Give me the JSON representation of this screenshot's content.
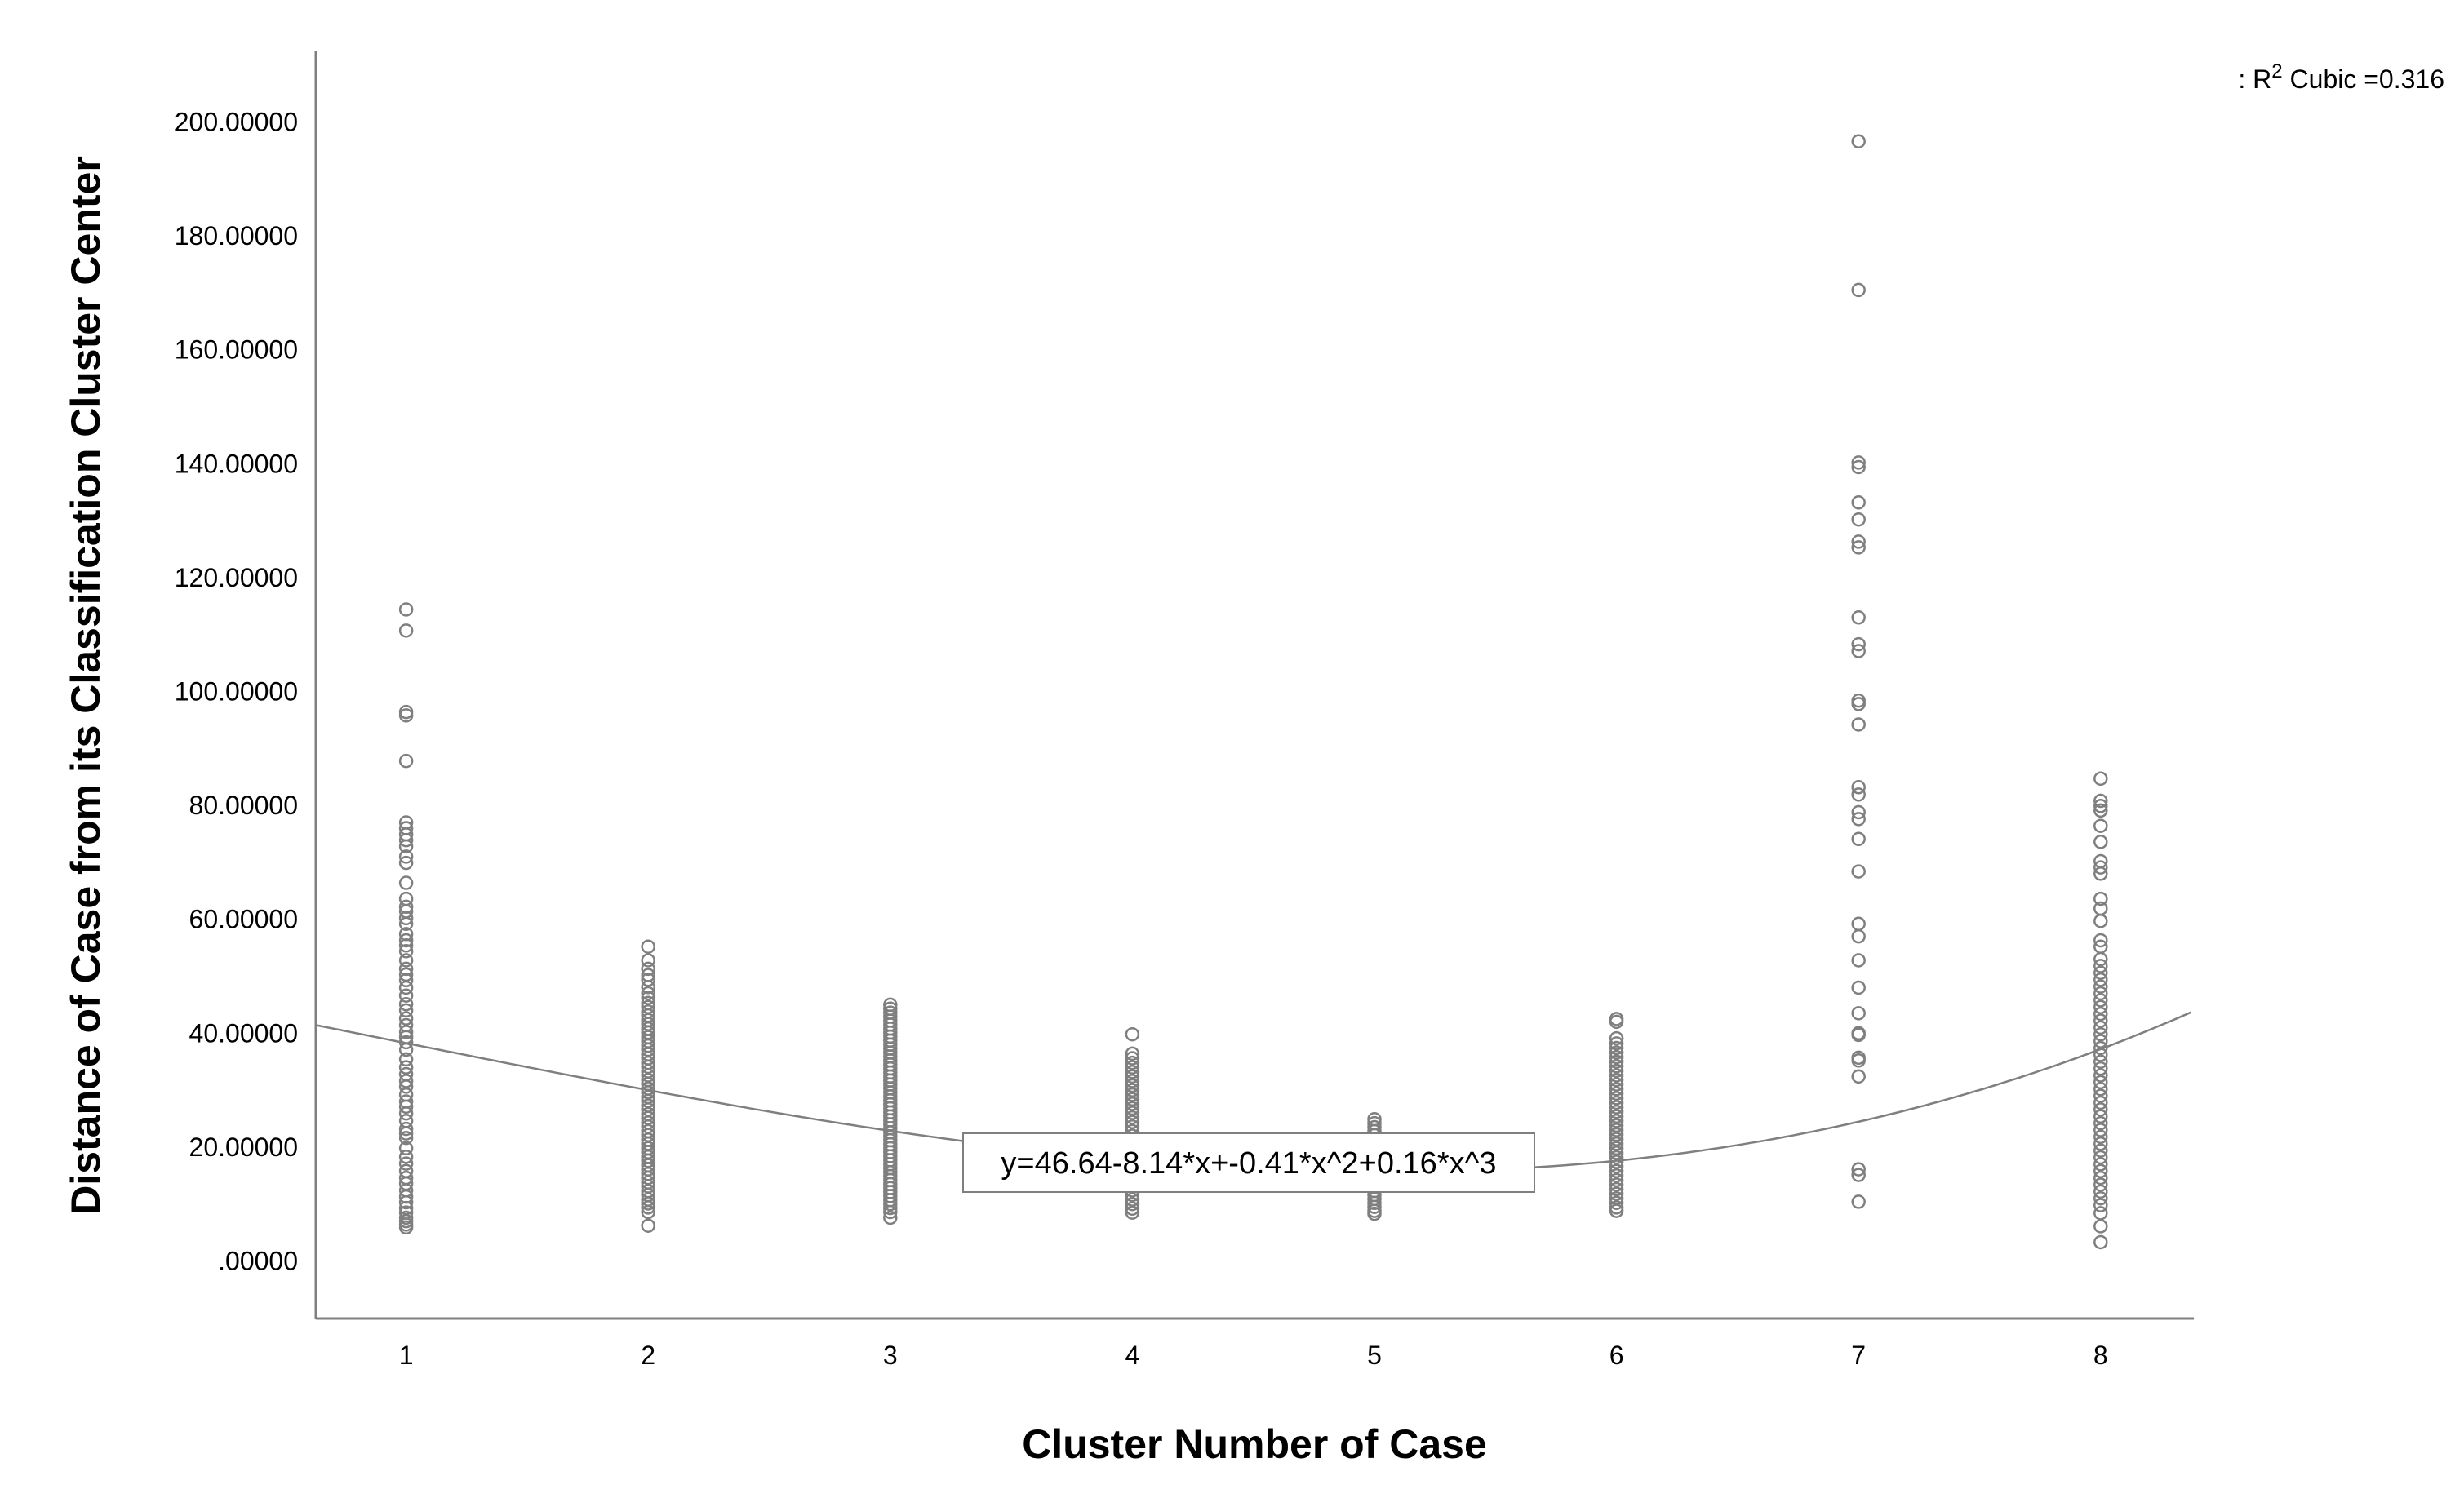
{
  "chart_data": {
    "type": "scatter",
    "title": "",
    "xlabel": "Cluster Number of Case",
    "ylabel": "Distance of Case from its Classification Cluster Center",
    "xlim": [
      0.63,
      8.4
    ],
    "ylim": [
      -10,
      212
    ],
    "x_ticks": [
      "1",
      "2",
      "3",
      "4",
      "5",
      "6",
      "7",
      "8"
    ],
    "y_ticks": [
      ".00000",
      "20.00000",
      "40.00000",
      "60.00000",
      "80.00000",
      "100.00000",
      "120.00000",
      "140.00000",
      "160.00000",
      "180.00000",
      "200.00000"
    ],
    "y_tick_values": [
      0,
      20,
      40,
      60,
      80,
      100,
      120,
      140,
      160,
      180,
      200
    ],
    "grid": false,
    "marker": "open-circle",
    "point_color": "#7f7f7f",
    "fit": {
      "type": "cubic",
      "coefficients": [
        46.64,
        -8.14,
        -0.41,
        0.16
      ],
      "equation_label": "y=46.64-8.14*x+-0.41*x^2+0.16*x^3",
      "legend_prefix": ": R",
      "legend_sup": "2",
      "legend_suffix": " Cubic =0.316",
      "color": "#7f7f7f"
    },
    "series": [
      {
        "x": 1,
        "points": [
          114.4,
          110.7,
          96.4,
          95.8,
          87.8,
          77.0,
          76.0,
          74.9,
          73.9,
          72.8,
          71.0,
          69.9,
          66.4,
          63.6,
          62.2,
          61.4,
          60.2,
          59.2,
          57.4,
          56.3,
          55.4,
          54.4,
          52.8,
          51.3,
          50.3,
          49.3,
          48.0,
          46.6,
          45.1,
          44.0,
          42.6,
          41.4,
          40.2,
          39.3,
          38.4,
          37.1,
          35.4,
          34.0,
          32.8,
          31.6,
          30.6,
          29.2,
          28.0,
          27.1,
          25.9,
          24.6,
          23.2,
          22.4,
          21.6,
          19.8,
          18.3,
          17.1,
          15.8,
          14.6,
          13.6,
          12.4,
          11.3,
          10.3,
          9.3,
          8.5,
          7.6,
          7.0,
          6.4,
          5.9
        ]
      },
      {
        "x": 2,
        "points": [
          55.2,
          52.8,
          51.3,
          50.2,
          49.4,
          48.1,
          47.0,
          46.2,
          45.3,
          44.6,
          43.8,
          43.1,
          42.3,
          41.6,
          40.8,
          40.1,
          39.3,
          38.6,
          37.8,
          37.1,
          36.3,
          35.6,
          34.8,
          34.1,
          33.3,
          32.6,
          31.8,
          31.1,
          30.3,
          29.6,
          28.8,
          28.1,
          27.3,
          26.6,
          25.8,
          25.1,
          24.3,
          23.6,
          22.8,
          22.1,
          21.3,
          20.6,
          19.8,
          19.1,
          18.3,
          17.6,
          16.8,
          16.1,
          15.3,
          14.6,
          13.8,
          13.1,
          12.3,
          11.6,
          10.8,
          10.1,
          9.4,
          8.6,
          6.2
        ]
      },
      {
        "x": 3,
        "points": [
          45.0,
          44.3,
          43.6,
          42.9,
          42.2,
          41.5,
          40.8,
          40.1,
          39.4,
          38.7,
          38.0,
          37.3,
          36.6,
          35.9,
          35.2,
          34.5,
          33.8,
          33.1,
          32.4,
          31.7,
          31.0,
          30.3,
          29.6,
          28.9,
          28.2,
          27.5,
          26.8,
          26.1,
          25.4,
          24.7,
          24.0,
          23.3,
          22.6,
          21.9,
          21.2,
          20.5,
          19.8,
          19.1,
          18.4,
          17.7,
          17.0,
          16.3,
          15.6,
          14.9,
          14.2,
          13.5,
          12.8,
          12.1,
          11.4,
          10.7,
          10.0,
          9.3,
          8.6,
          7.6
        ]
      },
      {
        "x": 4,
        "points": [
          39.8,
          36.4,
          35.6,
          34.8,
          34.0,
          33.2,
          32.4,
          31.6,
          30.8,
          30.0,
          29.2,
          28.4,
          27.6,
          26.8,
          26.0,
          25.2,
          24.4,
          23.6,
          22.8,
          22.0,
          21.2,
          20.4,
          19.6,
          18.8,
          18.0,
          17.2,
          16.4,
          15.6,
          14.8,
          14.0,
          13.2,
          12.4,
          11.6,
          10.8,
          10.0,
          9.2,
          8.5
        ]
      },
      {
        "x": 5,
        "points": [
          24.9,
          24.2,
          23.5,
          22.8,
          22.1,
          21.4,
          20.7,
          20.0,
          19.3,
          18.6,
          17.9,
          17.2,
          16.5,
          15.8,
          15.1,
          14.4,
          13.7,
          13.0,
          12.3,
          11.6,
          10.9,
          10.2,
          9.5,
          8.8,
          8.3
        ]
      },
      {
        "x": 6,
        "points": [
          42.5,
          42.0,
          39.1,
          38.2,
          37.4,
          36.6,
          35.8,
          35.0,
          34.2,
          33.4,
          32.6,
          31.8,
          31.0,
          30.2,
          29.4,
          28.6,
          27.8,
          27.0,
          26.2,
          25.4,
          24.6,
          23.8,
          23.0,
          22.2,
          21.4,
          20.6,
          19.8,
          19.0,
          18.2,
          17.4,
          16.6,
          15.8,
          15.0,
          14.2,
          13.4,
          12.6,
          11.8,
          11.0,
          10.2,
          9.4,
          8.8
        ]
      },
      {
        "x": 7,
        "points": [
          196.6,
          170.5,
          140.2,
          139.4,
          133.2,
          130.2,
          126.3,
          125.3,
          113.0,
          108.3,
          107.1,
          98.4,
          97.8,
          94.2,
          83.2,
          81.9,
          78.8,
          77.6,
          74.1,
          68.4,
          59.2,
          57.0,
          52.8,
          48.0,
          43.5,
          40.0,
          39.7,
          35.7,
          35.2,
          32.4,
          16.1,
          15.1,
          10.4
        ]
      },
      {
        "x": 8,
        "points": [
          84.7,
          80.8,
          79.9,
          79.1,
          76.4,
          73.6,
          70.2,
          69.1,
          68.0,
          63.6,
          61.9,
          59.7,
          56.3,
          55.2,
          53.0,
          51.8,
          50.6,
          49.4,
          48.2,
          47.0,
          45.8,
          44.6,
          43.4,
          42.2,
          41.0,
          39.8,
          38.6,
          37.4,
          36.2,
          35.0,
          33.8,
          32.6,
          31.4,
          30.2,
          29.0,
          27.8,
          26.6,
          25.4,
          24.2,
          23.0,
          21.8,
          20.6,
          19.4,
          18.2,
          17.0,
          15.8,
          14.6,
          13.4,
          12.2,
          11.0,
          9.8,
          8.4,
          6.1,
          3.3
        ]
      }
    ]
  }
}
